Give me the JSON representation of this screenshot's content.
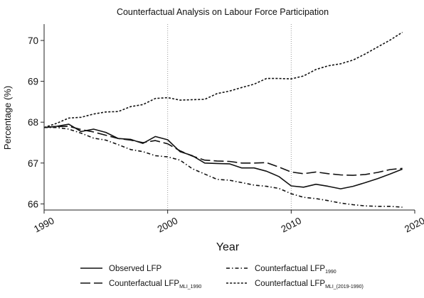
{
  "chart_data": {
    "type": "line",
    "title": "Counterfactual Analysis on Labour Force Participation",
    "xlabel": "Year",
    "ylabel": "Percentage (%)",
    "xlim": [
      1990,
      2020
    ],
    "ylim": [
      65.85,
      70.4
    ],
    "x_ticks": [
      1990,
      2000,
      2010,
      2020
    ],
    "y_ticks": [
      66,
      67,
      68,
      69,
      70
    ],
    "grid": "vertical dotted at x ticks",
    "legend_placement": "bottom",
    "x": [
      1990,
      1991,
      1992,
      1993,
      1994,
      1995,
      1996,
      1997,
      1998,
      1999,
      2000,
      2001,
      2002,
      2003,
      2004,
      2005,
      2006,
      2007,
      2008,
      2009,
      2010,
      2011,
      2012,
      2013,
      2014,
      2015,
      2016,
      2017,
      2018,
      2019
    ],
    "series": [
      {
        "name": "Observed LFP",
        "name_main": "Observed LFP",
        "name_sub": "",
        "style": "solid",
        "values": [
          67.87,
          67.9,
          67.95,
          67.77,
          67.83,
          67.75,
          67.6,
          67.58,
          67.48,
          67.65,
          67.57,
          67.28,
          67.18,
          67.0,
          66.99,
          66.98,
          66.88,
          66.88,
          66.8,
          66.67,
          66.44,
          66.41,
          66.48,
          66.43,
          66.37,
          66.43,
          66.52,
          66.62,
          66.73,
          66.85
        ]
      },
      {
        "name": "Counterfactual LFP MLI_1990",
        "name_main": "Counterfactual LFP",
        "name_sub": "MLI_1990",
        "style": "longdash",
        "values": [
          67.87,
          67.89,
          67.9,
          67.82,
          67.76,
          67.68,
          67.6,
          67.56,
          67.5,
          67.55,
          67.47,
          67.3,
          67.17,
          67.07,
          67.05,
          67.04,
          67.0,
          67.0,
          67.01,
          66.9,
          66.78,
          66.74,
          66.78,
          66.74,
          66.71,
          66.7,
          66.72,
          66.77,
          66.84,
          66.87
        ]
      },
      {
        "name": "Counterfactual LFP 1990",
        "name_main": "Counterfactual LFP",
        "name_sub": "1990",
        "style": "dashdot",
        "values": [
          67.87,
          67.87,
          67.83,
          67.73,
          67.61,
          67.56,
          67.45,
          67.33,
          67.28,
          67.18,
          67.15,
          67.07,
          66.86,
          66.73,
          66.6,
          66.58,
          66.52,
          66.46,
          66.43,
          66.38,
          66.25,
          66.16,
          66.13,
          66.08,
          66.02,
          65.98,
          65.95,
          65.94,
          65.94,
          65.92
        ]
      },
      {
        "name": "Counterfactual LFP MLI_(2019-1990)",
        "name_main": "Counterfactual LFP",
        "name_sub": "MLI_(2019-1990)",
        "style": "shortdash",
        "values": [
          67.87,
          67.97,
          68.1,
          68.12,
          68.2,
          68.25,
          68.26,
          68.38,
          68.43,
          68.58,
          68.6,
          68.54,
          68.55,
          68.56,
          68.7,
          68.76,
          68.85,
          68.93,
          69.07,
          69.07,
          69.06,
          69.13,
          69.29,
          69.38,
          69.43,
          69.52,
          69.67,
          69.84,
          70.01,
          70.2
        ]
      }
    ]
  }
}
